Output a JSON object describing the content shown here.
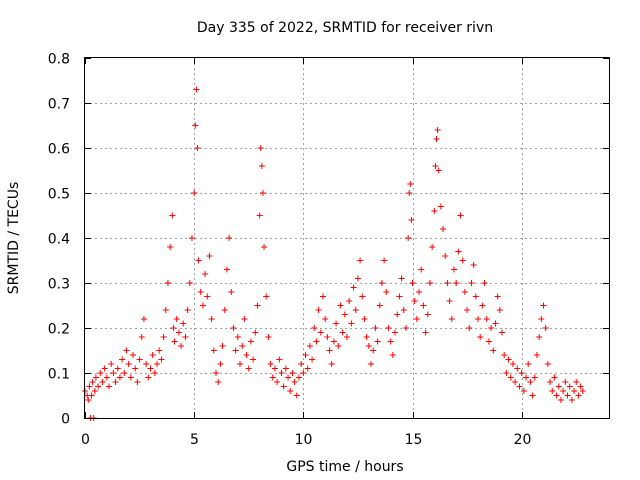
{
  "chart_data": {
    "type": "scatter",
    "title": "Day 335 of 2022, SRMTID for receiver rivn",
    "xlabel": "GPS time / hours",
    "ylabel": "SRMTID / TECUs",
    "xlim": [
      0,
      24
    ],
    "ylim": [
      0,
      0.8
    ],
    "xticks": [
      0,
      5,
      10,
      15,
      20
    ],
    "xtick_labels": [
      "0",
      "5",
      "10",
      "15",
      "20"
    ],
    "yticks": [
      0,
      0.1,
      0.2,
      0.3,
      0.4,
      0.5,
      0.6,
      0.7,
      0.8
    ],
    "ytick_labels": [
      "0",
      "0.1",
      "0.2",
      "0.3",
      "0.4",
      "0.5",
      "0.6",
      "0.7",
      "0.8"
    ],
    "grid": true,
    "marker": "+",
    "color": "#ff0000",
    "series": [
      {
        "name": "rivn",
        "points": [
          [
            0.0,
            0.06
          ],
          [
            0.1,
            0.05
          ],
          [
            0.15,
            0.04
          ],
          [
            0.2,
            0.07
          ],
          [
            0.25,
            0.0
          ],
          [
            0.3,
            0.05
          ],
          [
            0.35,
            0.08
          ],
          [
            0.4,
            0.0
          ],
          [
            0.45,
            0.06
          ],
          [
            0.5,
            0.09
          ],
          [
            0.6,
            0.07
          ],
          [
            0.7,
            0.1
          ],
          [
            0.8,
            0.08
          ],
          [
            0.9,
            0.11
          ],
          [
            1.0,
            0.09
          ],
          [
            1.1,
            0.07
          ],
          [
            1.2,
            0.12
          ],
          [
            1.3,
            0.1
          ],
          [
            1.4,
            0.08
          ],
          [
            1.5,
            0.11
          ],
          [
            1.6,
            0.09
          ],
          [
            1.7,
            0.13
          ],
          [
            1.8,
            0.1
          ],
          [
            1.9,
            0.15
          ],
          [
            2.0,
            0.12
          ],
          [
            2.1,
            0.09
          ],
          [
            2.2,
            0.14
          ],
          [
            2.3,
            0.11
          ],
          [
            2.4,
            0.08
          ],
          [
            2.5,
            0.13
          ],
          [
            2.6,
            0.18
          ],
          [
            2.7,
            0.22
          ],
          [
            2.8,
            0.12
          ],
          [
            2.9,
            0.09
          ],
          [
            3.0,
            0.11
          ],
          [
            3.1,
            0.14
          ],
          [
            3.2,
            0.1
          ],
          [
            3.3,
            0.12
          ],
          [
            3.4,
            0.15
          ],
          [
            3.5,
            0.13
          ],
          [
            3.6,
            0.18
          ],
          [
            3.7,
            0.24
          ],
          [
            3.8,
            0.3
          ],
          [
            3.9,
            0.38
          ],
          [
            4.0,
            0.45
          ],
          [
            4.05,
            0.2
          ],
          [
            4.1,
            0.17
          ],
          [
            4.2,
            0.22
          ],
          [
            4.3,
            0.19
          ],
          [
            4.4,
            0.16
          ],
          [
            4.5,
            0.21
          ],
          [
            4.6,
            0.18
          ],
          [
            4.7,
            0.24
          ],
          [
            4.8,
            0.3
          ],
          [
            4.9,
            0.4
          ],
          [
            5.0,
            0.5
          ],
          [
            5.05,
            0.65
          ],
          [
            5.1,
            0.73
          ],
          [
            5.15,
            0.6
          ],
          [
            5.2,
            0.35
          ],
          [
            5.3,
            0.28
          ],
          [
            5.4,
            0.25
          ],
          [
            5.5,
            0.32
          ],
          [
            5.6,
            0.27
          ],
          [
            5.7,
            0.36
          ],
          [
            5.8,
            0.22
          ],
          [
            5.9,
            0.15
          ],
          [
            6.0,
            0.1
          ],
          [
            6.1,
            0.08
          ],
          [
            6.2,
            0.12
          ],
          [
            6.3,
            0.16
          ],
          [
            6.4,
            0.24
          ],
          [
            6.5,
            0.33
          ],
          [
            6.6,
            0.4
          ],
          [
            6.7,
            0.28
          ],
          [
            6.8,
            0.2
          ],
          [
            6.9,
            0.15
          ],
          [
            7.0,
            0.18
          ],
          [
            7.1,
            0.12
          ],
          [
            7.2,
            0.16
          ],
          [
            7.3,
            0.22
          ],
          [
            7.4,
            0.14
          ],
          [
            7.5,
            0.11
          ],
          [
            7.6,
            0.17
          ],
          [
            7.7,
            0.13
          ],
          [
            7.8,
            0.19
          ],
          [
            7.9,
            0.25
          ],
          [
            8.0,
            0.45
          ],
          [
            8.05,
            0.6
          ],
          [
            8.1,
            0.56
          ],
          [
            8.15,
            0.5
          ],
          [
            8.2,
            0.38
          ],
          [
            8.3,
            0.27
          ],
          [
            8.4,
            0.18
          ],
          [
            8.5,
            0.12
          ],
          [
            8.6,
            0.09
          ],
          [
            8.7,
            0.11
          ],
          [
            8.8,
            0.08
          ],
          [
            8.9,
            0.13
          ],
          [
            9.0,
            0.1
          ],
          [
            9.1,
            0.07
          ],
          [
            9.2,
            0.11
          ],
          [
            9.3,
            0.09
          ],
          [
            9.4,
            0.06
          ],
          [
            9.5,
            0.1
          ],
          [
            9.6,
            0.08
          ],
          [
            9.7,
            0.05
          ],
          [
            9.8,
            0.09
          ],
          [
            9.9,
            0.12
          ],
          [
            10.0,
            0.1
          ],
          [
            10.1,
            0.14
          ],
          [
            10.2,
            0.11
          ],
          [
            10.3,
            0.16
          ],
          [
            10.4,
            0.13
          ],
          [
            10.5,
            0.2
          ],
          [
            10.6,
            0.17
          ],
          [
            10.7,
            0.24
          ],
          [
            10.8,
            0.19
          ],
          [
            10.9,
            0.27
          ],
          [
            11.0,
            0.22
          ],
          [
            11.1,
            0.18
          ],
          [
            11.2,
            0.15
          ],
          [
            11.3,
            0.12
          ],
          [
            11.4,
            0.17
          ],
          [
            11.5,
            0.21
          ],
          [
            11.6,
            0.16
          ],
          [
            11.7,
            0.25
          ],
          [
            11.8,
            0.19
          ],
          [
            11.9,
            0.23
          ],
          [
            12.0,
            0.18
          ],
          [
            12.1,
            0.26
          ],
          [
            12.2,
            0.21
          ],
          [
            12.3,
            0.29
          ],
          [
            12.4,
            0.24
          ],
          [
            12.5,
            0.31
          ],
          [
            12.6,
            0.35
          ],
          [
            12.7,
            0.27
          ],
          [
            12.8,
            0.22
          ],
          [
            12.9,
            0.18
          ],
          [
            13.0,
            0.16
          ],
          [
            13.1,
            0.12
          ],
          [
            13.2,
            0.15
          ],
          [
            13.3,
            0.2
          ],
          [
            13.4,
            0.17
          ],
          [
            13.5,
            0.25
          ],
          [
            13.6,
            0.3
          ],
          [
            13.7,
            0.35
          ],
          [
            13.8,
            0.28
          ],
          [
            13.9,
            0.2
          ],
          [
            14.0,
            0.17
          ],
          [
            14.1,
            0.14
          ],
          [
            14.2,
            0.19
          ],
          [
            14.3,
            0.23
          ],
          [
            14.4,
            0.27
          ],
          [
            14.5,
            0.31
          ],
          [
            14.6,
            0.24
          ],
          [
            14.7,
            0.2
          ],
          [
            14.8,
            0.4
          ],
          [
            14.85,
            0.5
          ],
          [
            14.9,
            0.52
          ],
          [
            14.95,
            0.44
          ],
          [
            15.0,
            0.3
          ],
          [
            15.1,
            0.26
          ],
          [
            15.2,
            0.22
          ],
          [
            15.3,
            0.28
          ],
          [
            15.4,
            0.33
          ],
          [
            15.5,
            0.25
          ],
          [
            15.6,
            0.19
          ],
          [
            15.7,
            0.23
          ],
          [
            15.8,
            0.3
          ],
          [
            15.9,
            0.38
          ],
          [
            16.0,
            0.46
          ],
          [
            16.05,
            0.56
          ],
          [
            16.1,
            0.62
          ],
          [
            16.15,
            0.64
          ],
          [
            16.2,
            0.55
          ],
          [
            16.3,
            0.47
          ],
          [
            16.4,
            0.42
          ],
          [
            16.5,
            0.36
          ],
          [
            16.6,
            0.3
          ],
          [
            16.7,
            0.26
          ],
          [
            16.8,
            0.22
          ],
          [
            16.9,
            0.33
          ],
          [
            17.0,
            0.3
          ],
          [
            17.1,
            0.37
          ],
          [
            17.2,
            0.45
          ],
          [
            17.3,
            0.35
          ],
          [
            17.4,
            0.28
          ],
          [
            17.5,
            0.24
          ],
          [
            17.6,
            0.2
          ],
          [
            17.7,
            0.3
          ],
          [
            17.8,
            0.34
          ],
          [
            17.9,
            0.27
          ],
          [
            18.0,
            0.22
          ],
          [
            18.1,
            0.18
          ],
          [
            18.2,
            0.25
          ],
          [
            18.3,
            0.3
          ],
          [
            18.4,
            0.22
          ],
          [
            18.5,
            0.17
          ],
          [
            18.6,
            0.2
          ],
          [
            18.7,
            0.15
          ],
          [
            18.8,
            0.21
          ],
          [
            18.9,
            0.27
          ],
          [
            19.0,
            0.24
          ],
          [
            19.1,
            0.19
          ],
          [
            19.2,
            0.14
          ],
          [
            19.3,
            0.1
          ],
          [
            19.4,
            0.13
          ],
          [
            19.5,
            0.09
          ],
          [
            19.6,
            0.12
          ],
          [
            19.7,
            0.08
          ],
          [
            19.8,
            0.11
          ],
          [
            19.9,
            0.07
          ],
          [
            20.0,
            0.1
          ],
          [
            20.1,
            0.06
          ],
          [
            20.2,
            0.09
          ],
          [
            20.3,
            0.12
          ],
          [
            20.4,
            0.08
          ],
          [
            20.5,
            0.05
          ],
          [
            20.6,
            0.09
          ],
          [
            20.7,
            0.14
          ],
          [
            20.8,
            0.18
          ],
          [
            20.9,
            0.22
          ],
          [
            21.0,
            0.25
          ],
          [
            21.1,
            0.2
          ],
          [
            21.2,
            0.12
          ],
          [
            21.3,
            0.08
          ],
          [
            21.4,
            0.06
          ],
          [
            21.5,
            0.09
          ],
          [
            21.6,
            0.05
          ],
          [
            21.7,
            0.07
          ],
          [
            21.8,
            0.04
          ],
          [
            21.9,
            0.06
          ],
          [
            22.0,
            0.08
          ],
          [
            22.1,
            0.05
          ],
          [
            22.2,
            0.07
          ],
          [
            22.3,
            0.04
          ],
          [
            22.4,
            0.06
          ],
          [
            22.5,
            0.08
          ],
          [
            22.6,
            0.05
          ],
          [
            22.7,
            0.07
          ],
          [
            22.8,
            0.06
          ]
        ]
      }
    ]
  }
}
